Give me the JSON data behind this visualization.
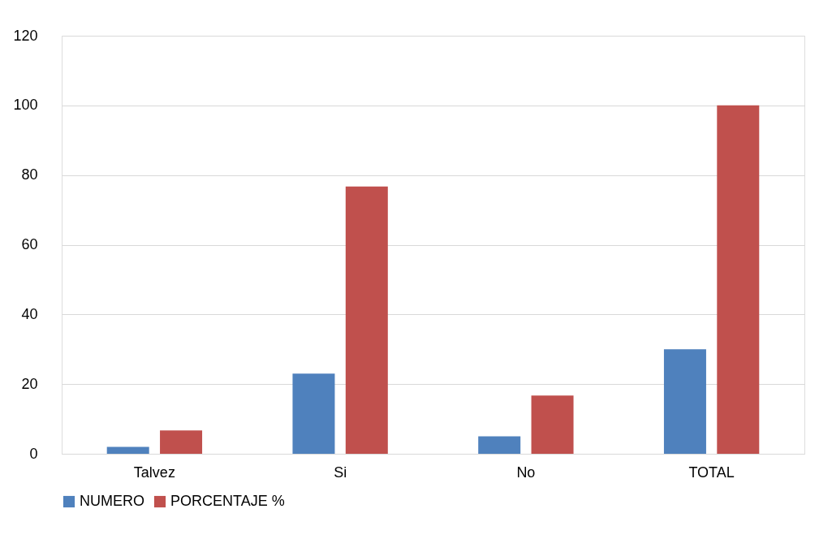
{
  "chart_data": {
    "type": "bar",
    "categories": [
      "Talvez",
      "Si",
      "No",
      "TOTAL"
    ],
    "series": [
      {
        "name": "NUMERO",
        "color": "#4f81bd",
        "values": [
          2,
          23,
          5,
          30
        ]
      },
      {
        "name": "PORCENTAJE %",
        "color": "#c0504d",
        "values": [
          6.7,
          76.7,
          16.7,
          100
        ]
      }
    ],
    "ylim": [
      0,
      120
    ],
    "yticks": [
      0,
      20,
      40,
      60,
      80,
      100,
      120
    ],
    "grid": "y",
    "legend": "bottom"
  }
}
